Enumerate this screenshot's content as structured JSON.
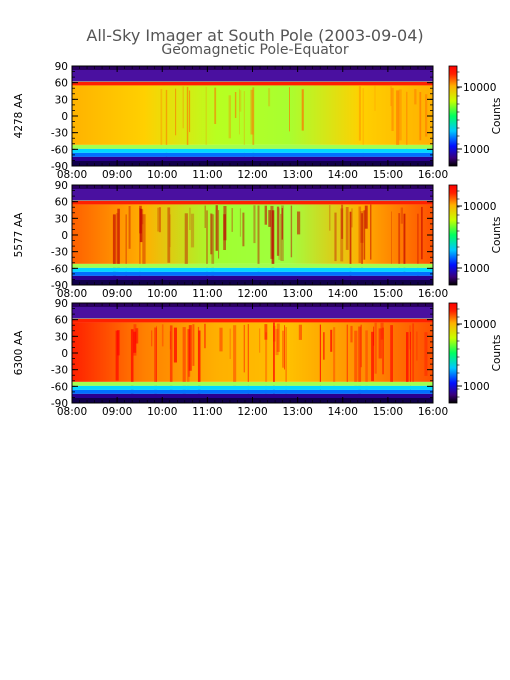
{
  "title": "All-Sky Imager at South Pole (2003-09-04)",
  "subtitle": "Geomagnetic Pole-Equator",
  "colorbar_label": "Counts",
  "colorbar_ticks": [
    "10000",
    "1000"
  ],
  "chart_data": [
    {
      "type": "heatmap",
      "ylabel": "4278 AA",
      "x_ticks": [
        "08:00",
        "09:00",
        "10:00",
        "11:00",
        "12:00",
        "13:00",
        "14:00",
        "15:00",
        "16:00"
      ],
      "y_ticks": [
        90,
        60,
        30,
        0,
        -30,
        -60,
        -90
      ],
      "xlim": [
        "08:00",
        "16:00"
      ],
      "ylim": [
        -90,
        90
      ],
      "colorbar": {
        "label": "Counts",
        "ticks": [
          10000,
          1000
        ],
        "scale": "log"
      }
    },
    {
      "type": "heatmap",
      "ylabel": "5577 AA",
      "x_ticks": [
        "08:00",
        "09:00",
        "10:00",
        "11:00",
        "12:00",
        "13:00",
        "14:00",
        "15:00",
        "16:00"
      ],
      "y_ticks": [
        90,
        60,
        30,
        0,
        -30,
        -60,
        -90
      ],
      "xlim": [
        "08:00",
        "16:00"
      ],
      "ylim": [
        -90,
        90
      ],
      "colorbar": {
        "label": "Counts",
        "ticks": [
          10000,
          1000
        ],
        "scale": "log"
      }
    },
    {
      "type": "heatmap",
      "ylabel": "6300 AA",
      "x_ticks": [
        "08:00",
        "09:00",
        "10:00",
        "11:00",
        "12:00",
        "13:00",
        "14:00",
        "15:00",
        "16:00"
      ],
      "y_ticks": [
        90,
        60,
        30,
        0,
        -30,
        -60,
        -90
      ],
      "xlim": [
        "08:00",
        "16:00"
      ],
      "ylim": [
        -90,
        90
      ],
      "colorbar": {
        "label": "Counts",
        "ticks": [
          10000,
          1000
        ],
        "scale": "log"
      }
    }
  ]
}
